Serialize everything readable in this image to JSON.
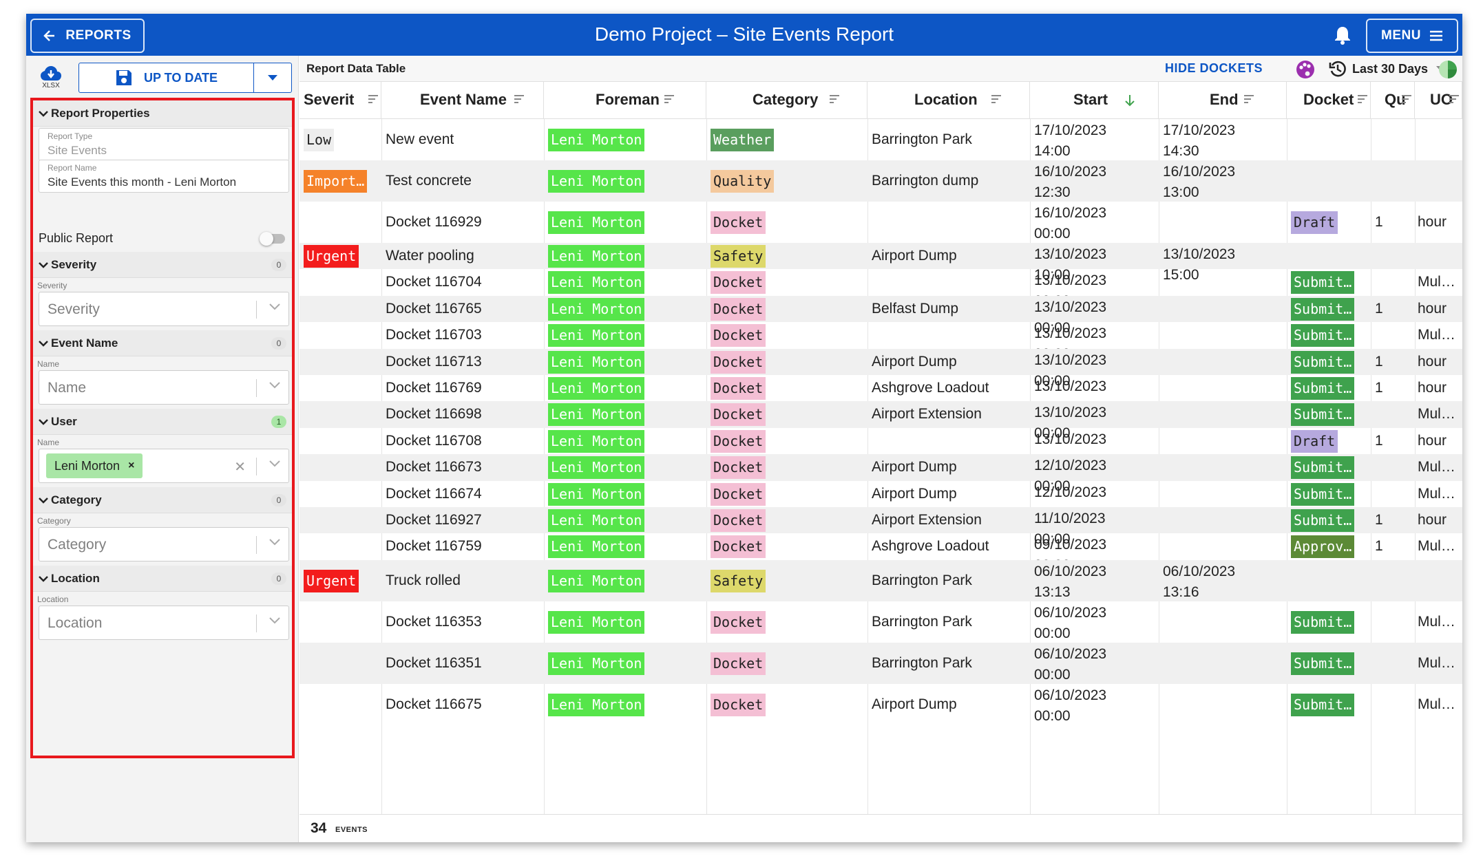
{
  "header": {
    "title": "Demo Project – Site Events Report",
    "reports_label": "REPORTS",
    "menu_label": "MENU"
  },
  "sidebar": {
    "export_label": "XLSX",
    "status_label": "UP TO DATE",
    "report_properties": {
      "title": "Report Properties",
      "type_label": "Report Type",
      "type_value": "Site Events",
      "name_label": "Report Name",
      "name_value": "Site Events this month - Leni Morton",
      "public_label": "Public Report",
      "public": false
    },
    "filters": [
      {
        "title": "Severity",
        "count": "0",
        "field_label": "Severity",
        "placeholder": "Severity"
      },
      {
        "title": "Event Name",
        "count": "0",
        "field_label": "Name",
        "placeholder": "Name"
      },
      {
        "title": "User",
        "count": "1",
        "field_label": "Name",
        "chip": "Leni Morton"
      },
      {
        "title": "Category",
        "count": "0",
        "field_label": "Category",
        "placeholder": "Category"
      },
      {
        "title": "Location",
        "count": "0",
        "field_label": "Location",
        "placeholder": "Location"
      }
    ]
  },
  "table": {
    "title": "Report Data Table",
    "hide_dockets": "HIDE DOCKETS",
    "range": "Last 30 Days",
    "columns": [
      "Severit",
      "Event Name",
      "Foreman",
      "Category",
      "Location",
      "Start",
      "End",
      "Docket",
      "Qu",
      "UO"
    ],
    "rows": [
      {
        "severity": "Low",
        "event": "New event",
        "foreman": "Leni Morton",
        "category": "Weather",
        "location": "Barrington Park",
        "start": [
          "17/10/2023",
          "14:00"
        ],
        "end": [
          "17/10/2023",
          "14:30"
        ],
        "docket": "",
        "qty": "",
        "uom": ""
      },
      {
        "severity": "Import…",
        "event": "Test concrete",
        "foreman": "Leni Morton",
        "category": "Quality",
        "location": "Barrington dump",
        "start": [
          "16/10/2023",
          "12:30"
        ],
        "end": [
          "16/10/2023",
          "13:00"
        ],
        "docket": "",
        "qty": "",
        "uom": ""
      },
      {
        "severity": "",
        "event": "Docket 116929",
        "foreman": "Leni Morton",
        "category": "Docket",
        "location": "",
        "start": [
          "16/10/2023",
          "00:00"
        ],
        "end": [
          "",
          ""
        ],
        "docket": "Draft",
        "qty": "1",
        "uom": "hour"
      },
      {
        "severity": "Urgent",
        "event": "Water pooling",
        "foreman": "Leni Morton",
        "category": "Safety",
        "location": "Airport Dump",
        "start": [
          "13/10/2023",
          "10:00"
        ],
        "end": [
          "13/10/2023",
          "15:00"
        ],
        "docket": "",
        "qty": "",
        "uom": ""
      },
      {
        "severity": "",
        "event": "Docket 116704",
        "foreman": "Leni Morton",
        "category": "Docket",
        "location": "",
        "start": [
          "13/10/2023",
          "00:00"
        ],
        "end": [
          "",
          ""
        ],
        "docket": "Submit…",
        "qty": "",
        "uom": "Mul…"
      },
      {
        "severity": "",
        "event": "Docket 116765",
        "foreman": "Leni Morton",
        "category": "Docket",
        "location": "Belfast Dump",
        "start": [
          "13/10/2023",
          "00:00"
        ],
        "end": [
          "",
          ""
        ],
        "docket": "Submit…",
        "qty": "1",
        "uom": "hour"
      },
      {
        "severity": "",
        "event": "Docket 116703",
        "foreman": "Leni Morton",
        "category": "Docket",
        "location": "",
        "start": [
          "13/10/2023",
          "00:00"
        ],
        "end": [
          "",
          ""
        ],
        "docket": "Submit…",
        "qty": "",
        "uom": "Mul…"
      },
      {
        "severity": "",
        "event": "Docket 116713",
        "foreman": "Leni Morton",
        "category": "Docket",
        "location": "Airport Dump",
        "start": [
          "13/10/2023",
          "00:00"
        ],
        "end": [
          "",
          ""
        ],
        "docket": "Submit…",
        "qty": "1",
        "uom": "hour"
      },
      {
        "severity": "",
        "event": "Docket 116769",
        "foreman": "Leni Morton",
        "category": "Docket",
        "location": "Ashgrove Loadout",
        "start": [
          "13/10/2023",
          "00:00"
        ],
        "end": [
          "",
          ""
        ],
        "docket": "Submit…",
        "qty": "1",
        "uom": "hour"
      },
      {
        "severity": "",
        "event": "Docket 116698",
        "foreman": "Leni Morton",
        "category": "Docket",
        "location": "Airport Extension",
        "start": [
          "13/10/2023",
          "00:00"
        ],
        "end": [
          "",
          ""
        ],
        "docket": "Submit…",
        "qty": "",
        "uom": "Mul…"
      },
      {
        "severity": "",
        "event": "Docket 116708",
        "foreman": "Leni Morton",
        "category": "Docket",
        "location": "",
        "start": [
          "13/10/2023",
          "00:00"
        ],
        "end": [
          "",
          ""
        ],
        "docket": "Draft",
        "qty": "1",
        "uom": "hour"
      },
      {
        "severity": "",
        "event": "Docket 116673",
        "foreman": "Leni Morton",
        "category": "Docket",
        "location": "Airport Dump",
        "start": [
          "12/10/2023",
          "00:00"
        ],
        "end": [
          "",
          ""
        ],
        "docket": "Submit…",
        "qty": "",
        "uom": "Mul…"
      },
      {
        "severity": "",
        "event": "Docket 116674",
        "foreman": "Leni Morton",
        "category": "Docket",
        "location": "Airport Dump",
        "start": [
          "12/10/2023",
          "00:00"
        ],
        "end": [
          "",
          ""
        ],
        "docket": "Submit…",
        "qty": "",
        "uom": "Mul…"
      },
      {
        "severity": "",
        "event": "Docket 116927",
        "foreman": "Leni Morton",
        "category": "Docket",
        "location": "Airport Extension",
        "start": [
          "11/10/2023",
          "00:00"
        ],
        "end": [
          "",
          ""
        ],
        "docket": "Submit…",
        "qty": "1",
        "uom": "hour"
      },
      {
        "severity": "",
        "event": "Docket 116759",
        "foreman": "Leni Morton",
        "category": "Docket",
        "location": "Ashgrove Loadout",
        "start": [
          "09/10/2023",
          "00:00"
        ],
        "end": [
          "",
          ""
        ],
        "docket": "Approv…",
        "qty": "1",
        "uom": "Mul…"
      },
      {
        "severity": "Urgent",
        "event": "Truck rolled",
        "foreman": "Leni Morton",
        "category": "Safety",
        "location": "Barrington Park",
        "start": [
          "06/10/2023",
          "13:13"
        ],
        "end": [
          "06/10/2023",
          "13:16"
        ],
        "docket": "",
        "qty": "",
        "uom": ""
      },
      {
        "severity": "",
        "event": "Docket 116353",
        "foreman": "Leni Morton",
        "category": "Docket",
        "location": "Barrington Park",
        "start": [
          "06/10/2023",
          "00:00"
        ],
        "end": [
          "",
          ""
        ],
        "docket": "Submit…",
        "qty": "",
        "uom": "Mul…"
      },
      {
        "severity": "",
        "event": "Docket 116351",
        "foreman": "Leni Morton",
        "category": "Docket",
        "location": "Barrington Park",
        "start": [
          "06/10/2023",
          "00:00"
        ],
        "end": [
          "",
          ""
        ],
        "docket": "Submit…",
        "qty": "",
        "uom": "Mul…"
      },
      {
        "severity": "",
        "event": "Docket 116675",
        "foreman": "Leni Morton",
        "category": "Docket",
        "location": "Airport Dump",
        "start": [
          "06/10/2023",
          "00:00"
        ],
        "end": [
          "",
          ""
        ],
        "docket": "Submit…",
        "qty": "",
        "uom": "Mul…"
      }
    ],
    "footer_count": "34",
    "footer_unit": "EVENTS"
  },
  "colors": {
    "brand": "#0d56c5",
    "highlight_border": "#e8181d",
    "severity": {
      "Low": "#eeeeee",
      "Import…": "#f5822a",
      "Urgent": "#f31c1c"
    },
    "foreman": "#56e54a",
    "category": {
      "Weather": "#5a9e5e",
      "Quality": "#f4c99d",
      "Docket": "#f4bfd4",
      "Safety": "#ddd86b"
    },
    "docket": {
      "Draft": "#b6a9de",
      "Submit…": "#3fa24d",
      "Approv…": "#5c8a36"
    }
  }
}
